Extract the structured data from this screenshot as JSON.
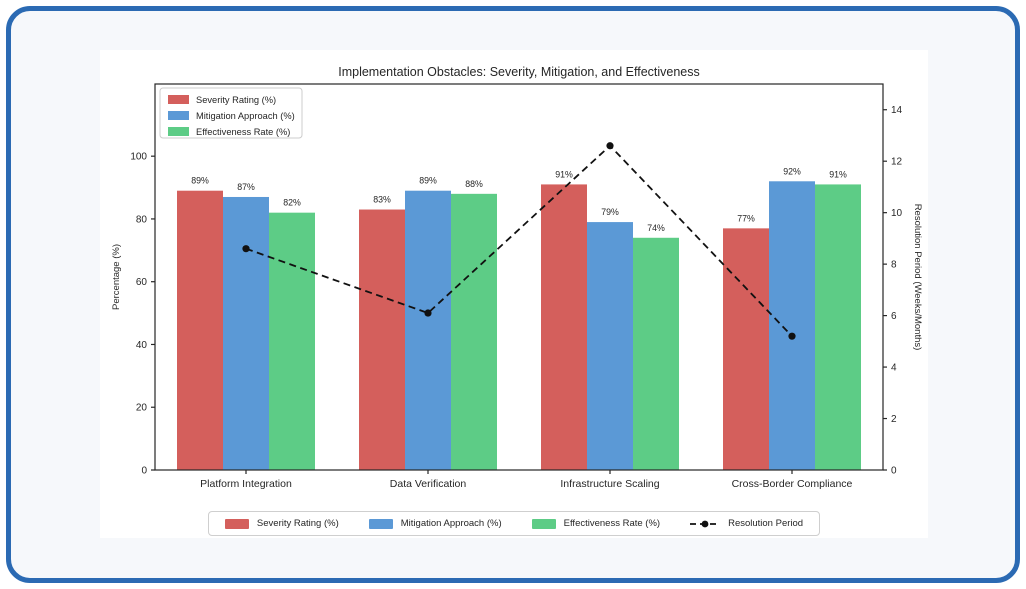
{
  "page": {
    "background_color": "#f6f8fb",
    "frame_border_color": "#2b6ab3",
    "figure_background": "#ffffff"
  },
  "chart_data": {
    "type": "bar",
    "title": "Implementation Obstacles: Severity, Mitigation, and Effectiveness",
    "categories": [
      "Platform Integration",
      "Data Verification",
      "Infrastructure Scaling",
      "Cross-Border Compliance"
    ],
    "series": [
      {
        "name": "Severity Rating (%)",
        "color": "#d45f5c",
        "values": [
          89,
          83,
          91,
          77
        ]
      },
      {
        "name": "Mitigation Approach (%)",
        "color": "#5b99d6",
        "values": [
          87,
          89,
          79,
          92
        ]
      },
      {
        "name": "Effectiveness Rate (%)",
        "color": "#5dcc86",
        "values": [
          82,
          88,
          74,
          91
        ]
      }
    ],
    "bar_labels": [
      [
        "89%",
        "83%",
        "91%",
        "77%"
      ],
      [
        "87%",
        "89%",
        "79%",
        "92%"
      ],
      [
        "82%",
        "88%",
        "74%",
        "91%"
      ]
    ],
    "line_series": {
      "name": "Resolution Period",
      "color": "#111111",
      "style": "dashed",
      "marker": "circle",
      "axis": "right",
      "values": [
        8.6,
        6.1,
        12.6,
        5.2
      ]
    },
    "xlabel": "",
    "ylabel": "Percentage (%)",
    "y2label": "Resolution Period (Weeks/Months)",
    "yticks": [
      0,
      20,
      40,
      60,
      80,
      100
    ],
    "y2ticks": [
      0,
      2,
      4,
      6,
      8,
      10,
      12,
      14
    ],
    "ylim": [
      0,
      123
    ],
    "y2lim": [
      0,
      15
    ],
    "grid": false,
    "legend_top_items": [
      "Severity Rating (%)",
      "Mitigation Approach (%)",
      "Effectiveness Rate (%)"
    ],
    "legend_top_position": "upper left inside plot",
    "legend_bottom_items": [
      "Severity Rating (%)",
      "Mitigation Approach (%)",
      "Effectiveness Rate (%)",
      "Resolution Period"
    ],
    "legend_bottom_position": "below plot centered"
  }
}
